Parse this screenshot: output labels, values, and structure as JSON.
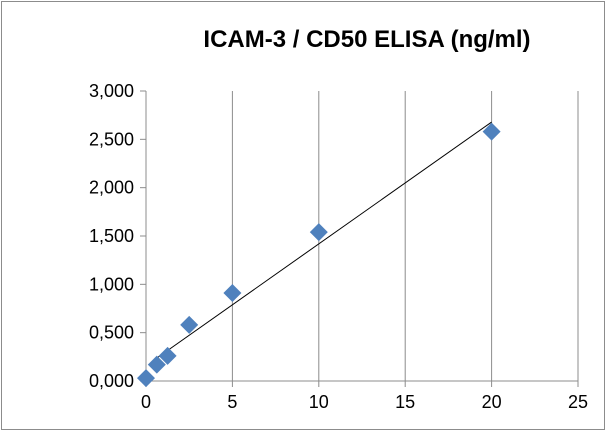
{
  "chart_data": {
    "type": "scatter",
    "title": "ICAM-3 / CD50 ELISA (ng/ml)",
    "xlabel": "",
    "ylabel": "",
    "xlim": [
      0,
      25
    ],
    "ylim": [
      0,
      3000
    ],
    "x_ticks": [
      0,
      5,
      10,
      15,
      20,
      25
    ],
    "x_tick_labels": [
      "0",
      "5",
      "10",
      "15",
      "20",
      "25"
    ],
    "y_ticks": [
      0,
      500,
      1000,
      1500,
      2000,
      2500,
      3000
    ],
    "y_tick_labels": [
      "0,000",
      "0,500",
      "1,000",
      "1,500",
      "2,000",
      "2,500",
      "3,000"
    ],
    "grid": {
      "vertical": true,
      "horizontal": false
    },
    "legend": "none",
    "marker": "diamond",
    "marker_color": "#4f81bd",
    "series": [
      {
        "x": [
          0,
          0.625,
          1.25,
          2.5,
          5,
          10,
          20
        ],
        "y": [
          30,
          170,
          260,
          580,
          910,
          1540,
          2580
        ]
      }
    ],
    "trendline": {
      "type": "linear",
      "x_from": 0.5,
      "x_to": 20
    }
  }
}
